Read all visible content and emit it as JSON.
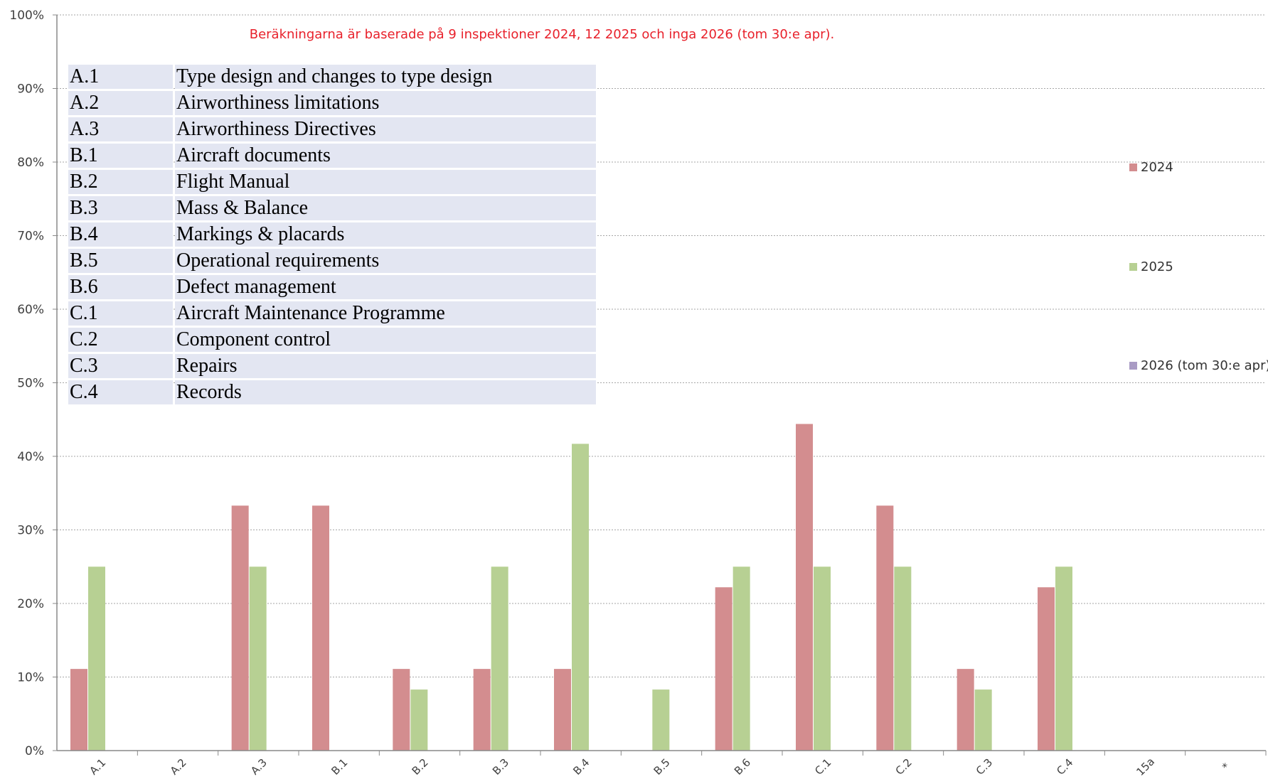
{
  "colors": {
    "2024": "#d38d8f",
    "2025": "#b7d093",
    "2026": "#a99bc4",
    "grid": "#a6a6a6",
    "note": "#e8212b",
    "table_bg": "#e3e6f2"
  },
  "note": "Beräkningarna är baserade på 9 inspektioner 2024, 12 2025 och inga 2026 (tom 30:e apr).",
  "legend": {
    "items": [
      "2024",
      "2025",
      "2026 (tom 30:e apr)"
    ]
  },
  "code_table": [
    {
      "code": "A.1",
      "description": "Type design and changes to type design"
    },
    {
      "code": "A.2",
      "description": "Airworthiness limitations"
    },
    {
      "code": "A.3",
      "description": "Airworthiness Directives"
    },
    {
      "code": "B.1",
      "description": "Aircraft documents"
    },
    {
      "code": "B.2",
      "description": "Flight Manual"
    },
    {
      "code": "B.3",
      "description": "Mass & Balance"
    },
    {
      "code": "B.4",
      "description": "Markings & placards"
    },
    {
      "code": "B.5",
      "description": "Operational requirements"
    },
    {
      "code": "B.6",
      "description": "Defect management"
    },
    {
      "code": "C.1",
      "description": "Aircraft Maintenance Programme"
    },
    {
      "code": "C.2",
      "description": "Component control"
    },
    {
      "code": "C.3",
      "description": "Repairs"
    },
    {
      "code": "C.4",
      "description": "Records"
    }
  ],
  "chart_data": {
    "type": "bar",
    "categories": [
      "A.1",
      "A.2",
      "A.3",
      "B.1",
      "B.2",
      "B.3",
      "B.4",
      "B.5",
      "B.6",
      "C.1",
      "C.2",
      "C.3",
      "C.4",
      "15a",
      "*"
    ],
    "series": [
      {
        "name": "2024",
        "values": [
          11.1,
          0,
          33.3,
          33.3,
          11.1,
          11.1,
          11.1,
          0,
          22.2,
          44.4,
          33.3,
          11.1,
          22.2,
          0,
          0
        ]
      },
      {
        "name": "2025",
        "values": [
          25,
          0,
          25,
          0,
          8.3,
          25,
          41.7,
          8.3,
          25,
          25,
          25,
          8.3,
          25,
          0,
          0
        ]
      },
      {
        "name": "2026 (tom 30:e apr)",
        "values": [
          0,
          0,
          0,
          0,
          0,
          0,
          0,
          0,
          0,
          0,
          0,
          0,
          0,
          0,
          0
        ]
      }
    ],
    "yticks": [
      "0%",
      "10%",
      "20%",
      "30%",
      "40%",
      "50%",
      "60%",
      "70%",
      "80%",
      "90%",
      "100%"
    ],
    "ylim": [
      0,
      100
    ],
    "grid": true,
    "legend_position": "right"
  }
}
